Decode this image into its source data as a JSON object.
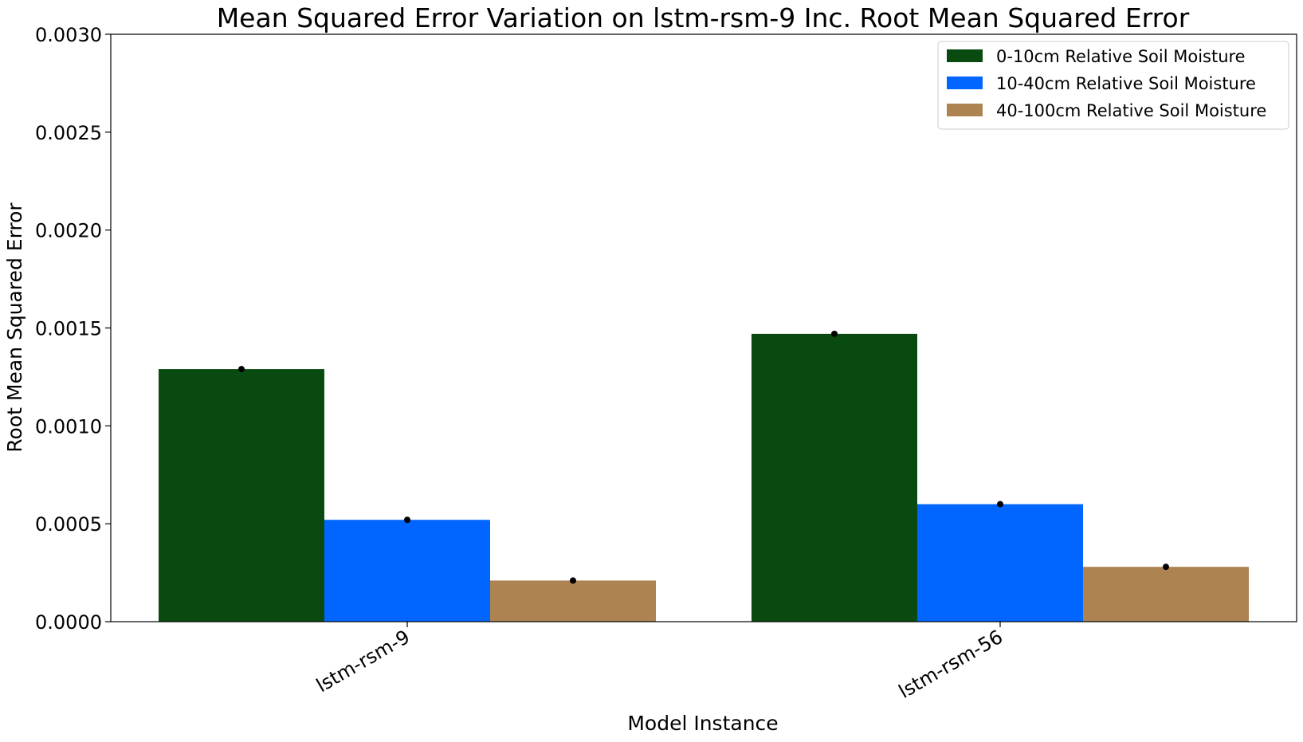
{
  "chart_data": {
    "type": "bar",
    "title": "Mean Squared Error Variation on lstm-rsm-9 Inc. Root Mean Squared Error",
    "xlabel": "Model Instance",
    "ylabel": "Root Mean Squared Error",
    "categories": [
      "lstm-rsm-9",
      "lstm-rsm-56"
    ],
    "ylim": [
      0,
      0.003
    ],
    "yticks": [
      "0.0000",
      "0.0005",
      "0.0010",
      "0.0015",
      "0.0020",
      "0.0025",
      "0.0030"
    ],
    "ytick_values": [
      0,
      0.0005,
      0.001,
      0.0015,
      0.002,
      0.0025,
      0.003
    ],
    "legend_position": "top-right",
    "grid": false,
    "series": [
      {
        "name": "0-10cm Relative Soil Moisture",
        "color": "#084a0f",
        "values": [
          0.00129,
          0.00147
        ]
      },
      {
        "name": "10-40cm Relative Soil Moisture",
        "color": "#0066ff",
        "values": [
          0.00052,
          0.0006
        ]
      },
      {
        "name": "40-100cm Relative Soil Moisture",
        "color": "#ad8352",
        "values": [
          0.00021,
          0.00028
        ]
      }
    ],
    "error_markers": [
      [
        0.00129,
        0.00147
      ],
      [
        0.00052,
        0.0006
      ],
      [
        0.00021,
        0.00028
      ]
    ]
  }
}
